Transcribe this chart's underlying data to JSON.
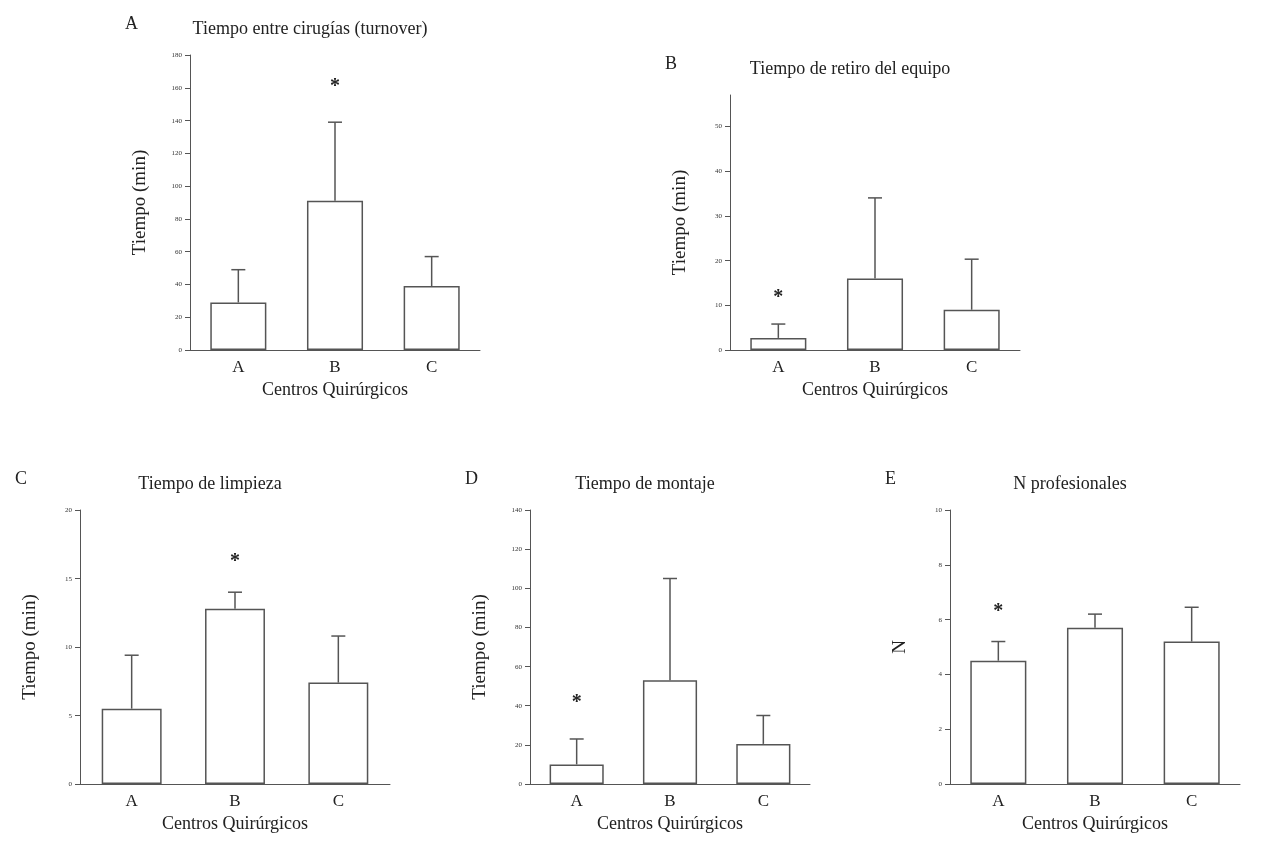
{
  "chart_data": [
    {
      "type": "bar",
      "title": "Tiempo entre cirugías (turnover)",
      "xlabel": "Centros Quirúrgicos",
      "ylabel": "Tiempo (min)",
      "categories": [
        "A",
        "B",
        "C"
      ],
      "values": [
        29,
        91,
        39
      ],
      "errors": [
        [
          29,
          49
        ],
        [
          91,
          139
        ],
        [
          39,
          57
        ]
      ],
      "color": "#ffffff",
      "ylim": [
        0,
        180
      ],
      "yticks": [
        0,
        20,
        40,
        60,
        80,
        100,
        120,
        140,
        160,
        180
      ],
      "annotations": [
        "A",
        "*"
      ]
    },
    {
      "type": "bar",
      "title": "Tiempo de retiro del equipo",
      "xlabel": "Centros Quirúrgicos",
      "ylabel": "Tiempo (min)",
      "categories": [
        "A",
        "B",
        "C"
      ],
      "values": [
        2.7,
        16,
        9
      ],
      "errors": [
        [
          2.7,
          5.8
        ],
        [
          16,
          34
        ],
        [
          9,
          20.3
        ]
      ],
      "color": "#ffffff",
      "ylim": [
        0,
        57
      ],
      "yticks": [
        0,
        10,
        20,
        30,
        40,
        50
      ],
      "annotations": [
        "B",
        "*"
      ]
    },
    {
      "type": "bar",
      "title": "Tiempo de limpieza",
      "xlabel": "Centros Quirúrgicos",
      "ylabel": "Tiempo (min)",
      "categories": [
        "A",
        "B",
        "C"
      ],
      "values": [
        5.5,
        12.8,
        7.4
      ],
      "errors": [
        [
          5.5,
          9.4
        ],
        [
          12.8,
          14
        ],
        [
          7.4,
          10.8
        ]
      ],
      "color": "#ffffff",
      "ylim": [
        0,
        20
      ],
      "yticks": [
        0,
        5,
        10,
        15,
        20
      ],
      "annotations": [
        "C",
        "*"
      ]
    },
    {
      "type": "bar",
      "title": "Tiempo de montaje",
      "xlabel": "Centros Quirúrgicos",
      "ylabel": "Tiempo (min)",
      "categories": [
        "A",
        "B",
        "C"
      ],
      "values": [
        10,
        53,
        20.5
      ],
      "errors": [
        [
          10,
          23
        ],
        [
          53,
          105
        ],
        [
          20.5,
          35
        ]
      ],
      "color": "#ffffff",
      "ylim": [
        0,
        140
      ],
      "yticks": [
        0,
        20,
        40,
        60,
        80,
        100,
        120,
        140
      ],
      "annotations": [
        "D",
        "*"
      ]
    },
    {
      "type": "bar",
      "title": "N profesionales",
      "xlabel": "Centros Quirúrgicos",
      "ylabel": "N",
      "categories": [
        "A",
        "B",
        "C"
      ],
      "values": [
        4.5,
        5.7,
        5.2
      ],
      "errors": [
        [
          4.5,
          5.2
        ],
        [
          5.7,
          6.2
        ],
        [
          5.2,
          6.45
        ]
      ],
      "color": "#ffffff",
      "ylim": [
        0,
        10
      ],
      "yticks": [
        0,
        2,
        4,
        6,
        8,
        10
      ],
      "annotations": [
        "E",
        "*"
      ]
    }
  ]
}
